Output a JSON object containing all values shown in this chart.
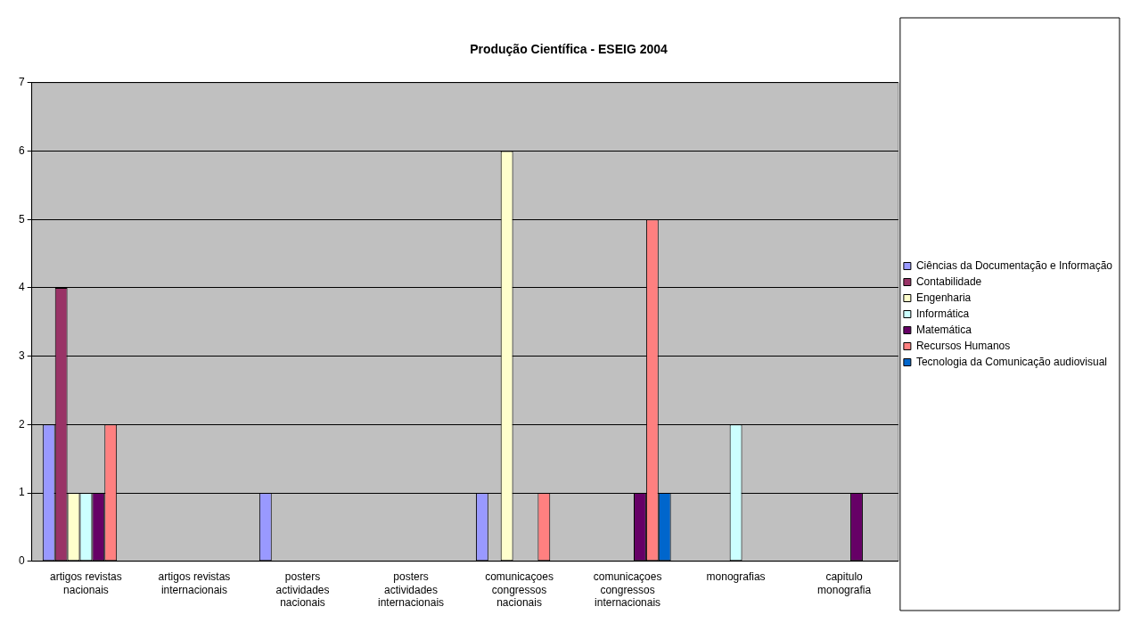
{
  "chart_data": {
    "type": "bar",
    "title": "Produção Científica - ESEIG 2004",
    "categories": [
      "artigos revistas nacionais",
      "artigos revistas internacionais",
      "posters actividades nacionais",
      "posters actividades internacionais",
      "comunicaçoes congressos nacionais",
      "comunicaçoes congressos internacionais",
      "monografias",
      "capitulo monografia"
    ],
    "series": [
      {
        "name": "Ciências da Documentação e Informação",
        "color": "#9999ff",
        "values": [
          2,
          0,
          1,
          0,
          1,
          0,
          0,
          0
        ]
      },
      {
        "name": "Contabilidade",
        "color": "#993366",
        "values": [
          4,
          0,
          0,
          0,
          0,
          0,
          0,
          0
        ]
      },
      {
        "name": "Engenharia",
        "color": "#ffffcc",
        "values": [
          1,
          0,
          0,
          0,
          6,
          0,
          0,
          0
        ]
      },
      {
        "name": "Informática",
        "color": "#ccffff",
        "values": [
          1,
          0,
          0,
          0,
          0,
          0,
          2,
          0
        ]
      },
      {
        "name": "Matemática",
        "color": "#660066",
        "values": [
          1,
          0,
          0,
          0,
          0,
          1,
          0,
          1
        ]
      },
      {
        "name": "Recursos Humanos",
        "color": "#ff8080",
        "values": [
          2,
          0,
          0,
          0,
          1,
          5,
          0,
          0
        ]
      },
      {
        "name": "Tecnologia da Comunicação audiovisual",
        "color": "#0066cc",
        "values": [
          0,
          0,
          0,
          0,
          0,
          1,
          0,
          0
        ]
      }
    ],
    "ylim": [
      0,
      7
    ],
    "yticks": [
      0,
      1,
      2,
      3,
      4,
      5,
      6,
      7
    ],
    "grid": "y",
    "legend": "right"
  }
}
